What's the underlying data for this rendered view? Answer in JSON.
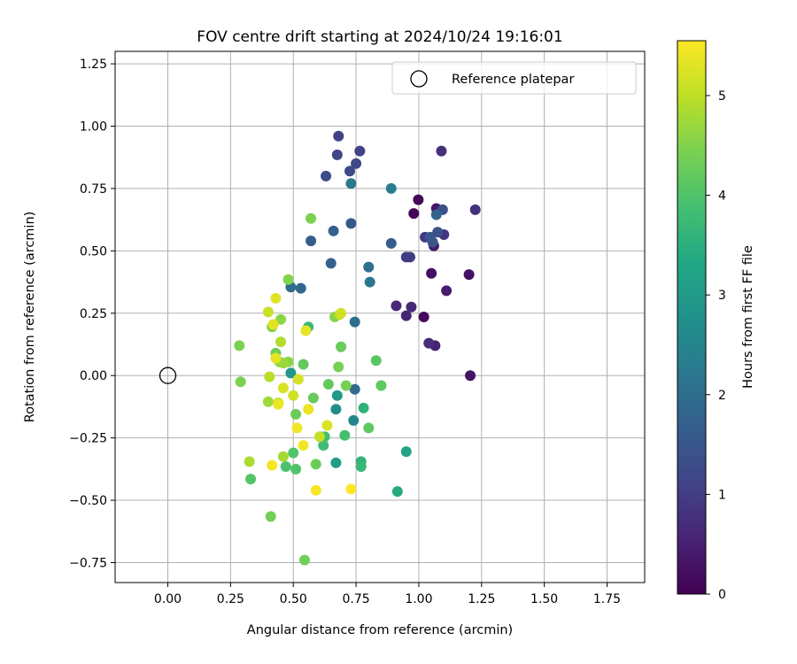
{
  "chart_data": {
    "type": "scatter",
    "title": "FOV centre drift starting at 2024/10/24 19:16:01",
    "xlabel": "Angular distance from reference (arcmin)",
    "ylabel": "Rotation from reference (arcmin)",
    "xlim": [
      -0.21,
      1.9
    ],
    "ylim": [
      -0.83,
      1.3
    ],
    "xticks": [
      0.0,
      0.25,
      0.5,
      0.75,
      1.0,
      1.25,
      1.5,
      1.75
    ],
    "xtick_labels": [
      "0.00",
      "0.25",
      "0.50",
      "0.75",
      "1.00",
      "1.25",
      "1.50",
      "1.75"
    ],
    "yticks": [
      -0.75,
      -0.5,
      -0.25,
      0.0,
      0.25,
      0.5,
      0.75,
      1.0,
      1.25
    ],
    "ytick_labels": [
      "−0.75",
      "−0.50",
      "−0.25",
      "0.00",
      "0.25",
      "0.50",
      "0.75",
      "1.00",
      "1.25"
    ],
    "grid": true,
    "legend": {
      "placement": "top-right",
      "entries": [
        "Reference platepar"
      ]
    },
    "reference_point": {
      "label": "Reference platepar",
      "x": 0.0,
      "y": 0.0
    },
    "colorbar": {
      "label": "Hours from first FF file",
      "colormap": "viridis",
      "range": [
        0,
        5.55
      ],
      "ticks": [
        0,
        1,
        2,
        3,
        4,
        5
      ],
      "tick_labels": [
        "0",
        "1",
        "2",
        "3",
        "4",
        "5"
      ]
    },
    "series": [
      {
        "points": [
          [
            0.98,
            0.65,
            0.05
          ],
          [
            0.998,
            0.705,
            0.1
          ],
          [
            1.02,
            0.235,
            0.15
          ],
          [
            1.05,
            0.41,
            0.2
          ],
          [
            1.2,
            0.405,
            0.25
          ],
          [
            1.205,
            0.0,
            0.3
          ],
          [
            1.07,
            0.67,
            0.35
          ],
          [
            1.06,
            0.52,
            0.4
          ],
          [
            1.11,
            0.34,
            0.45
          ],
          [
            1.065,
            0.12,
            0.5
          ],
          [
            0.95,
            0.24,
            0.55
          ],
          [
            0.91,
            0.28,
            0.6
          ],
          [
            0.97,
            0.275,
            0.65
          ],
          [
            1.04,
            0.13,
            0.7
          ],
          [
            1.09,
            0.9,
            0.75
          ],
          [
            1.225,
            0.665,
            0.8
          ],
          [
            1.1,
            0.565,
            0.85
          ],
          [
            1.025,
            0.555,
            0.9
          ],
          [
            0.95,
            0.475,
            0.95
          ],
          [
            0.965,
            0.475,
            1.0
          ],
          [
            0.68,
            0.96,
            1.05
          ],
          [
            0.765,
            0.9,
            1.1
          ],
          [
            0.675,
            0.885,
            1.15
          ],
          [
            0.75,
            0.85,
            1.2
          ],
          [
            0.725,
            0.82,
            1.25
          ],
          [
            0.63,
            0.8,
            1.3
          ],
          [
            1.095,
            0.665,
            1.35
          ],
          [
            1.075,
            0.575,
            1.4
          ],
          [
            1.045,
            0.555,
            1.45
          ],
          [
            1.055,
            0.535,
            1.5
          ],
          [
            0.73,
            0.61,
            1.55
          ],
          [
            0.57,
            0.54,
            1.6
          ],
          [
            0.89,
            0.53,
            1.65
          ],
          [
            0.66,
            0.58,
            1.7
          ],
          [
            0.65,
            0.45,
            1.75
          ],
          [
            1.07,
            0.645,
            1.8
          ],
          [
            0.53,
            0.35,
            1.85
          ],
          [
            0.745,
            -0.055,
            1.9
          ],
          [
            0.49,
            0.355,
            1.95
          ],
          [
            0.745,
            0.215,
            2.0
          ],
          [
            0.8,
            0.435,
            2.05
          ],
          [
            0.805,
            0.375,
            2.15
          ],
          [
            0.73,
            0.77,
            2.25
          ],
          [
            0.89,
            0.75,
            2.35
          ],
          [
            0.74,
            -0.18,
            2.5
          ],
          [
            0.67,
            -0.135,
            2.7
          ],
          [
            0.49,
            0.01,
            2.9
          ],
          [
            0.675,
            -0.08,
            3.0
          ],
          [
            0.67,
            -0.35,
            3.1
          ],
          [
            0.95,
            -0.305,
            3.2
          ],
          [
            0.915,
            -0.465,
            3.4
          ],
          [
            0.78,
            -0.13,
            3.55
          ],
          [
            0.77,
            -0.345,
            3.6
          ],
          [
            0.77,
            -0.365,
            3.7
          ],
          [
            0.56,
            0.195,
            3.75
          ],
          [
            0.62,
            -0.28,
            3.8
          ],
          [
            0.625,
            -0.245,
            3.85
          ],
          [
            0.705,
            -0.24,
            3.9
          ],
          [
            0.47,
            -0.365,
            3.95
          ],
          [
            0.5,
            -0.31,
            4.0
          ],
          [
            0.51,
            -0.375,
            4.0
          ],
          [
            0.33,
            -0.415,
            4.05
          ],
          [
            0.83,
            0.06,
            4.1
          ],
          [
            0.85,
            -0.04,
            4.15
          ],
          [
            0.8,
            -0.21,
            4.15
          ],
          [
            0.54,
            0.045,
            4.2
          ],
          [
            0.64,
            -0.035,
            4.2
          ],
          [
            0.58,
            -0.09,
            4.25
          ],
          [
            0.69,
            0.115,
            4.25
          ],
          [
            0.43,
            0.09,
            4.3
          ],
          [
            0.51,
            -0.155,
            4.3
          ],
          [
            0.59,
            -0.355,
            4.3
          ],
          [
            0.41,
            -0.565,
            4.35
          ],
          [
            0.545,
            -0.74,
            4.35
          ],
          [
            0.68,
            0.035,
            4.4
          ],
          [
            0.71,
            -0.04,
            4.4
          ],
          [
            0.285,
            0.12,
            4.45
          ],
          [
            0.29,
            -0.025,
            4.45
          ],
          [
            0.57,
            0.63,
            4.45
          ],
          [
            0.48,
            0.385,
            4.5
          ],
          [
            0.415,
            0.195,
            4.5
          ],
          [
            0.665,
            0.235,
            4.55
          ],
          [
            0.48,
            0.055,
            4.6
          ],
          [
            0.45,
            0.225,
            4.6
          ],
          [
            0.445,
            0.055,
            4.65
          ],
          [
            0.46,
            0.05,
            4.7
          ],
          [
            0.4,
            -0.105,
            4.75
          ],
          [
            0.46,
            -0.325,
            4.8
          ],
          [
            0.325,
            -0.345,
            4.85
          ],
          [
            0.45,
            0.135,
            4.9
          ],
          [
            0.405,
            -0.005,
            4.95
          ],
          [
            0.685,
            0.245,
            5.0
          ],
          [
            0.44,
            -0.11,
            5.0
          ],
          [
            0.605,
            -0.245,
            5.05
          ],
          [
            0.4,
            0.255,
            5.1
          ],
          [
            0.69,
            0.25,
            5.15
          ],
          [
            0.5,
            -0.08,
            5.15
          ],
          [
            0.46,
            -0.05,
            5.2
          ],
          [
            0.52,
            -0.015,
            5.2
          ],
          [
            0.635,
            -0.2,
            5.25
          ],
          [
            0.43,
            0.31,
            5.3
          ],
          [
            0.42,
            0.205,
            5.3
          ],
          [
            0.43,
            0.07,
            5.35
          ],
          [
            0.55,
            0.18,
            5.35
          ],
          [
            0.56,
            -0.135,
            5.4
          ],
          [
            0.44,
            -0.115,
            5.4
          ],
          [
            0.515,
            -0.21,
            5.45
          ],
          [
            0.54,
            -0.28,
            5.45
          ],
          [
            0.415,
            -0.36,
            5.5
          ],
          [
            0.59,
            -0.46,
            5.5
          ],
          [
            0.73,
            -0.455,
            5.55
          ]
        ]
      }
    ]
  }
}
